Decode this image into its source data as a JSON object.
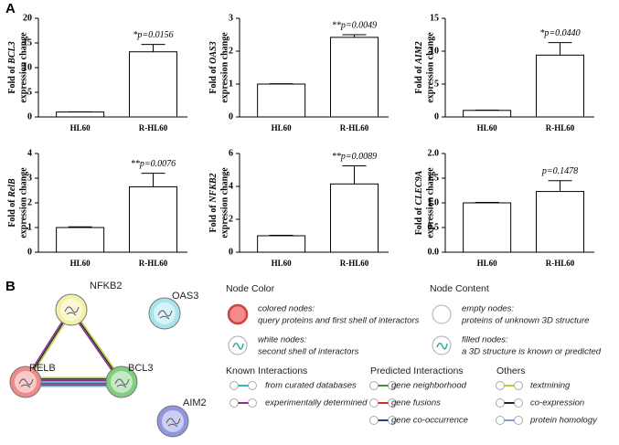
{
  "panel_labels": [
    "A",
    "B"
  ],
  "chart_data": [
    {
      "type": "bar",
      "y_label_prefix": "Fold of",
      "gene": "BCL3",
      "y_label_suffix": "expression change",
      "categories": [
        "HL60",
        "R-HL60"
      ],
      "values": [
        1,
        13.2
      ],
      "errors": [
        0.05,
        1.5
      ],
      "annotation": "*p=0.0156",
      "ylim": [
        0,
        20
      ],
      "yticks": [
        0,
        5,
        10,
        15,
        20
      ]
    },
    {
      "type": "bar",
      "y_label_prefix": "Fold of",
      "gene": "OAS3",
      "y_label_suffix": "expression change",
      "categories": [
        "HL60",
        "R-HL60"
      ],
      "values": [
        1,
        2.42
      ],
      "errors": [
        0.01,
        0.08
      ],
      "annotation": "**p=0.0049",
      "ylim": [
        0,
        3
      ],
      "yticks": [
        0,
        1,
        2,
        3
      ]
    },
    {
      "type": "bar",
      "y_label_prefix": "Fold of",
      "gene": "AIM2",
      "y_label_suffix": "expression change",
      "categories": [
        "HL60",
        "R-HL60"
      ],
      "values": [
        1,
        9.4
      ],
      "errors": [
        0.05,
        1.9
      ],
      "annotation": "*p=0.0440",
      "ylim": [
        0,
        15
      ],
      "yticks": [
        0,
        5,
        10,
        15
      ]
    },
    {
      "type": "bar",
      "y_label_prefix": "Fold of",
      "gene": "RelB",
      "y_label_suffix": "expression change",
      "categories": [
        "HL60",
        "R-HL60"
      ],
      "values": [
        1,
        2.65
      ],
      "errors": [
        0.03,
        0.55
      ],
      "annotation": "**p=0.0076",
      "ylim": [
        0,
        4
      ],
      "yticks": [
        0,
        1,
        2,
        3,
        4
      ]
    },
    {
      "type": "bar",
      "y_label_prefix": "Fold of",
      "gene": "NFKB2",
      "y_label_suffix": "expression change",
      "categories": [
        "HL60",
        "R-HL60"
      ],
      "values": [
        1,
        4.15
      ],
      "errors": [
        0.03,
        1.1
      ],
      "annotation": "**p=0.0089",
      "ylim": [
        0,
        6
      ],
      "yticks": [
        0,
        2,
        4,
        6
      ]
    },
    {
      "type": "bar",
      "y_label_prefix": "Fold of",
      "gene": "CLEC9A",
      "y_label_suffix": "expression change",
      "categories": [
        "HL60",
        "R-HL60"
      ],
      "values": [
        1.0,
        1.23
      ],
      "errors": [
        0.01,
        0.22
      ],
      "annotation": "p=0.1478",
      "ylim": [
        0,
        2
      ],
      "yticks": [
        {
          "value": 0,
          "label": "0.0"
        },
        0.5,
        {
          "value": 1,
          "label": "1.0"
        },
        1.5,
        {
          "value": 2,
          "label": "2.0"
        }
      ]
    }
  ],
  "network": {
    "nodes": [
      {
        "label": "NFKB2",
        "color": "#f5f0a8"
      },
      {
        "label": "RELB",
        "color": "#ef8a8a"
      },
      {
        "label": "BCL3",
        "color": "#7fcf7f"
      },
      {
        "label": "OAS3",
        "color": "#a8e4ee"
      },
      {
        "label": "AIM2",
        "color": "#8f96e0"
      }
    ]
  },
  "legend": {
    "node_color": {
      "title": "Node Color",
      "items": [
        {
          "title": "colored nodes:",
          "text": "query proteins and first shell of interactors"
        },
        {
          "title": "white nodes:",
          "text": "second shell of interactors"
        }
      ]
    },
    "node_content": {
      "title": "Node Content",
      "items": [
        {
          "title": "empty nodes:",
          "text": "proteins of unknown 3D structure"
        },
        {
          "title": "filled nodes:",
          "text": "a 3D structure is known or predicted"
        }
      ]
    },
    "known": {
      "title": "Known Interactions",
      "items": [
        {
          "text": "from curated databases",
          "color": "#33b5d1"
        },
        {
          "text": "experimentally determined",
          "color": "#8e2a8e"
        }
      ]
    },
    "predicted": {
      "title": "Predicted Interactions",
      "items": [
        {
          "text": "gene neighborhood",
          "color": "#2f9a3a"
        },
        {
          "text": "gene fusions",
          "color": "#d92a2a"
        },
        {
          "text": "gene co-occurrence",
          "color": "#2a3aa0"
        }
      ]
    },
    "others": {
      "title": "Others",
      "items": [
        {
          "text": "textmining",
          "color": "#b5d12a"
        },
        {
          "text": "co-expression",
          "color": "#222222"
        },
        {
          "text": "protein homology",
          "color": "#7f9ae8"
        }
      ]
    }
  }
}
